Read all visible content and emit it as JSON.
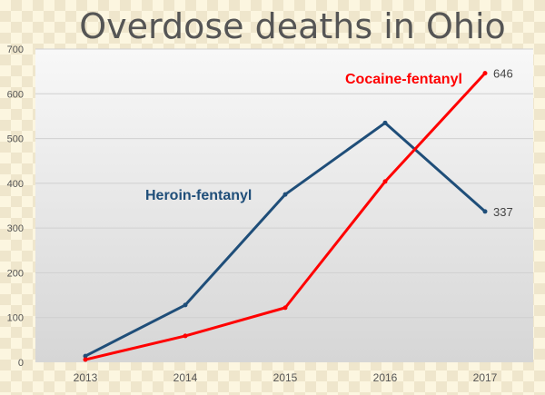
{
  "chart_data": {
    "type": "line",
    "title": "Overdose deaths in Ohio",
    "xlabel": "",
    "ylabel": "",
    "categories": [
      "2013",
      "2014",
      "2015",
      "2016",
      "2017"
    ],
    "ylim": [
      0,
      700
    ],
    "yticks": [
      0,
      100,
      200,
      300,
      400,
      500,
      600,
      700
    ],
    "grid": true,
    "series": [
      {
        "name": "Heroin-fentanyl",
        "color": "#1f4e79",
        "values": [
          14,
          128,
          375,
          535,
          337
        ],
        "end_label": "337"
      },
      {
        "name": "Cocaine-fentanyl",
        "color": "#ff0000",
        "values": [
          6,
          59,
          122,
          404,
          646
        ],
        "end_label": "646"
      }
    ]
  }
}
